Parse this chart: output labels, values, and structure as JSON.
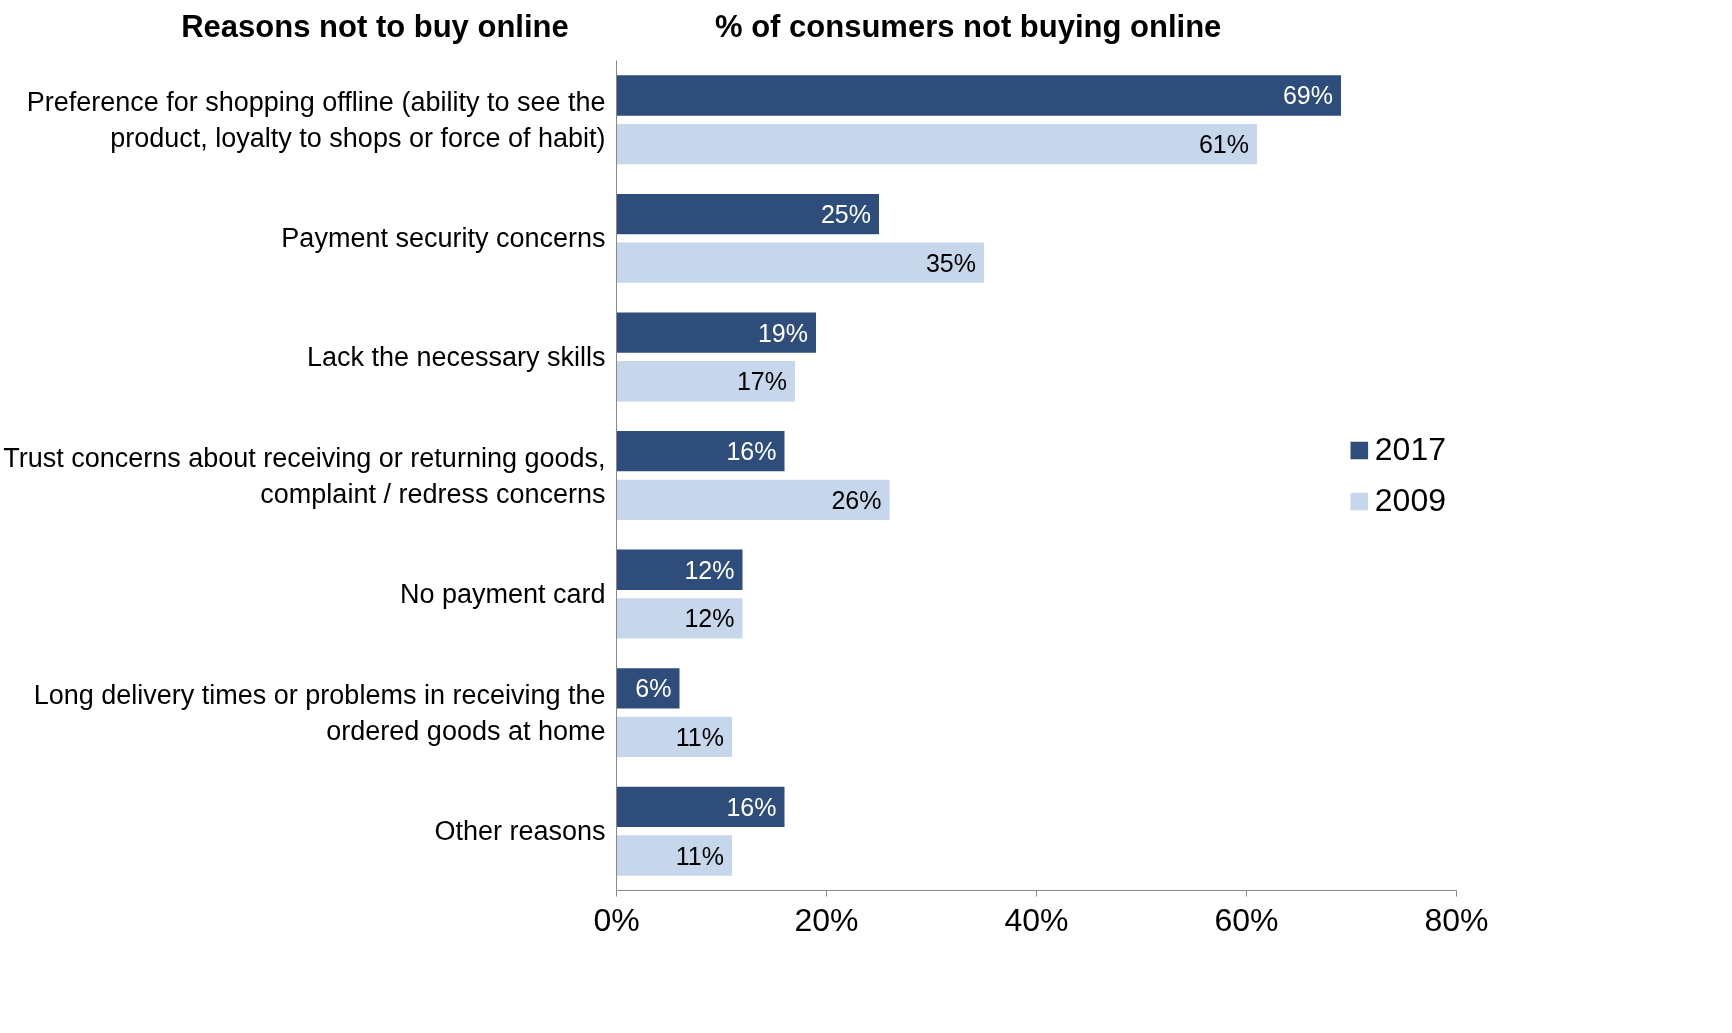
{
  "chart_data": {
    "type": "bar",
    "orientation": "horizontal",
    "title": "% of consumers not buying online",
    "ylabel": "Reasons not to buy online",
    "categories": [
      "Preference for shopping offline (ability to see the\nproduct, loyalty to shops or force of habit)",
      "Payment security concerns",
      "Lack the necessary skills",
      "Trust concerns about receiving or returning goods,\ncomplaint / redress concerns",
      "No payment card",
      "Long delivery times or problems in receiving the\nordered goods at home",
      "Other reasons"
    ],
    "series": [
      {
        "name": "2017",
        "color": "#2e4d7b",
        "values": [
          69,
          25,
          19,
          16,
          12,
          6,
          16
        ],
        "value_labels": [
          "69%",
          "25%",
          "19%",
          "16%",
          "12%",
          "6%",
          "16%"
        ]
      },
      {
        "name": "2009",
        "color": "#c6d6eb",
        "values": [
          61,
          35,
          17,
          26,
          12,
          11,
          11
        ],
        "value_labels": [
          "61%",
          "35%",
          "17%",
          "26%",
          "12%",
          "11%",
          "11%"
        ]
      }
    ],
    "xlim": [
      0,
      80
    ],
    "xticks": [
      {
        "value": 0,
        "label": "0%"
      },
      {
        "value": 20,
        "label": "20%"
      },
      {
        "value": 40,
        "label": "40%"
      },
      {
        "value": 60,
        "label": "60%"
      },
      {
        "value": 80,
        "label": "80%"
      }
    ],
    "legend": "right",
    "grid": false
  }
}
